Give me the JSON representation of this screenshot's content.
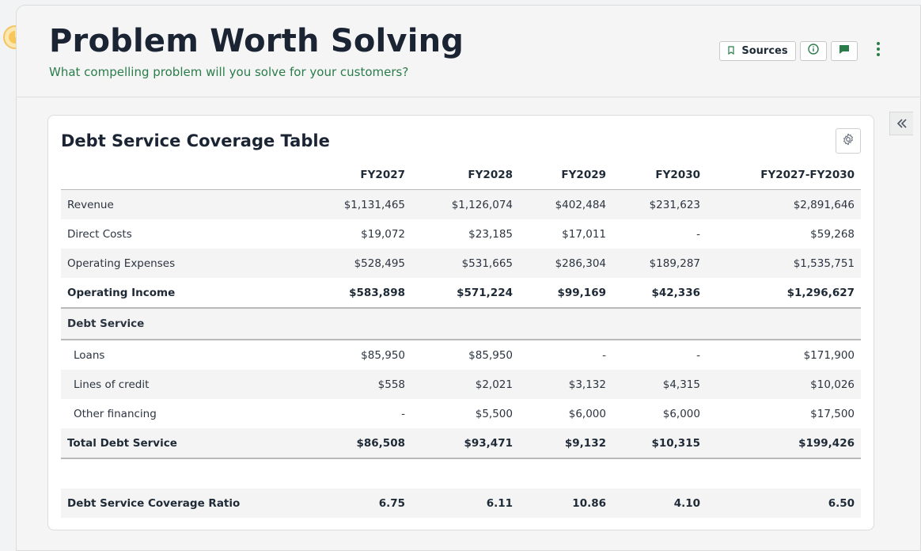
{
  "header": {
    "title": "Problem Worth Solving",
    "subtitle": "What compelling problem will you solve for your customers?",
    "sources_label": "Sources",
    "icons": [
      "bookmark-icon",
      "info-icon",
      "comment-icon",
      "kebab-menu-icon"
    ]
  },
  "colors": {
    "accent_green": "#2a7d4a",
    "title": "#1b2433",
    "logo": "#f3c464"
  },
  "card": {
    "title": "Debt Service Coverage Table",
    "columns": [
      "",
      "FY2027",
      "FY2028",
      "FY2029",
      "FY2030",
      "FY2027-FY2030"
    ],
    "rows": [
      {
        "label": "Revenue",
        "values": [
          "$1,131,465",
          "$1,126,074",
          "$402,484",
          "$231,623",
          "$2,891,646"
        ]
      },
      {
        "label": "Direct Costs",
        "values": [
          "$19,072",
          "$23,185",
          "$17,011",
          "-",
          "$59,268"
        ]
      },
      {
        "label": "Operating Expenses",
        "values": [
          "$528,495",
          "$531,665",
          "$286,304",
          "$189,287",
          "$1,535,751"
        ]
      },
      {
        "label": "Operating Income",
        "values": [
          "$583,898",
          "$571,224",
          "$99,169",
          "$42,336",
          "$1,296,627"
        ]
      },
      {
        "label": "Debt Service",
        "values": []
      },
      {
        "label": "Loans",
        "values": [
          "$85,950",
          "$85,950",
          "-",
          "-",
          "$171,900"
        ]
      },
      {
        "label": "Lines of credit",
        "values": [
          "$558",
          "$2,021",
          "$3,132",
          "$4,315",
          "$10,026"
        ]
      },
      {
        "label": "Other financing",
        "values": [
          "-",
          "$5,500",
          "$6,000",
          "$6,000",
          "$17,500"
        ]
      },
      {
        "label": "Total Debt Service",
        "values": [
          "$86,508",
          "$93,471",
          "$9,132",
          "$10,315",
          "$199,426"
        ]
      },
      {
        "label": "Debt Service Coverage Ratio",
        "values": [
          "6.75",
          "6.11",
          "10.86",
          "4.10",
          "6.50"
        ]
      }
    ]
  }
}
